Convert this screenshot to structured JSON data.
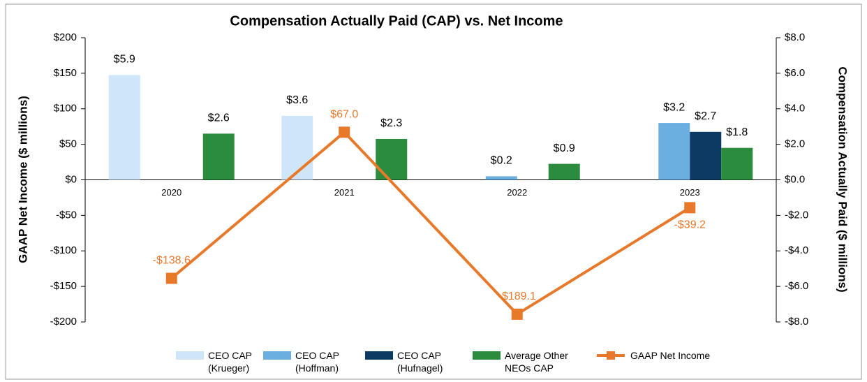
{
  "chart_data": {
    "type": "bar",
    "title": "Compensation Actually Paid (CAP) vs. Net Income",
    "y_label": "GAAP Net Income ($ millions)",
    "y2_label": "Compensation Actually Paid ($ millions)",
    "categories": [
      "2020",
      "2021",
      "2022",
      "2023"
    ],
    "ylim": [
      -200,
      200
    ],
    "yticks": [
      {
        "value": 200,
        "label": "$200"
      },
      {
        "value": 150,
        "label": "$150"
      },
      {
        "value": 100,
        "label": "$100"
      },
      {
        "value": 50,
        "label": "$50"
      },
      {
        "value": 0,
        "label": "$0"
      },
      {
        "value": -50,
        "label": "-$50"
      },
      {
        "value": -100,
        "label": "-$100"
      },
      {
        "value": -150,
        "label": "-$150"
      },
      {
        "value": -200,
        "label": "-$200"
      }
    ],
    "y2lim": [
      -8,
      8
    ],
    "y2ticks": [
      {
        "value": 8,
        "label": "$8.0"
      },
      {
        "value": 6,
        "label": "$6.0"
      },
      {
        "value": 4,
        "label": "$4.0"
      },
      {
        "value": 2,
        "label": "$2.0"
      },
      {
        "value": 0,
        "label": "$0.0"
      },
      {
        "value": -2,
        "label": "-$2.0"
      },
      {
        "value": -4,
        "label": "-$4.0"
      },
      {
        "value": -6,
        "label": "-$6.0"
      },
      {
        "value": -8,
        "label": "-$8.0"
      }
    ],
    "grid": false,
    "legend": "bottom",
    "series": [
      {
        "name": "CEO CAP\n(Krueger)",
        "type": "bar",
        "axis": "y2",
        "color": "#cfe6f8",
        "values": [
          5.9,
          3.6,
          null,
          null
        ],
        "value_labels": [
          "$5.9",
          "$3.6",
          null,
          null
        ]
      },
      {
        "name": "CEO CAP\n(Hoffman)",
        "type": "bar",
        "axis": "y2",
        "color": "#6aafe0",
        "values": [
          null,
          null,
          0.2,
          3.2
        ],
        "value_labels": [
          null,
          null,
          "$0.2",
          "$3.2"
        ]
      },
      {
        "name": "CEO CAP\n(Hufnagel)",
        "type": "bar",
        "axis": "y2",
        "color": "#0d3a63",
        "values": [
          null,
          null,
          null,
          2.7
        ],
        "value_labels": [
          null,
          null,
          null,
          "$2.7"
        ]
      },
      {
        "name": "Average Other\nNEOs CAP",
        "type": "bar",
        "axis": "y2",
        "color": "#2a8c3c",
        "values": [
          2.6,
          2.3,
          0.9,
          1.8
        ],
        "value_labels": [
          "$2.6",
          "$2.3",
          "$0.9",
          "$1.8"
        ]
      },
      {
        "name": "GAAP Net Income",
        "type": "line",
        "axis": "y",
        "color": "#e8792b",
        "values": [
          -138.6,
          67.0,
          -189.1,
          -39.2
        ],
        "value_labels": [
          "-$138.6",
          "$67.0",
          "-$189.1",
          "-$39.2"
        ]
      }
    ]
  }
}
